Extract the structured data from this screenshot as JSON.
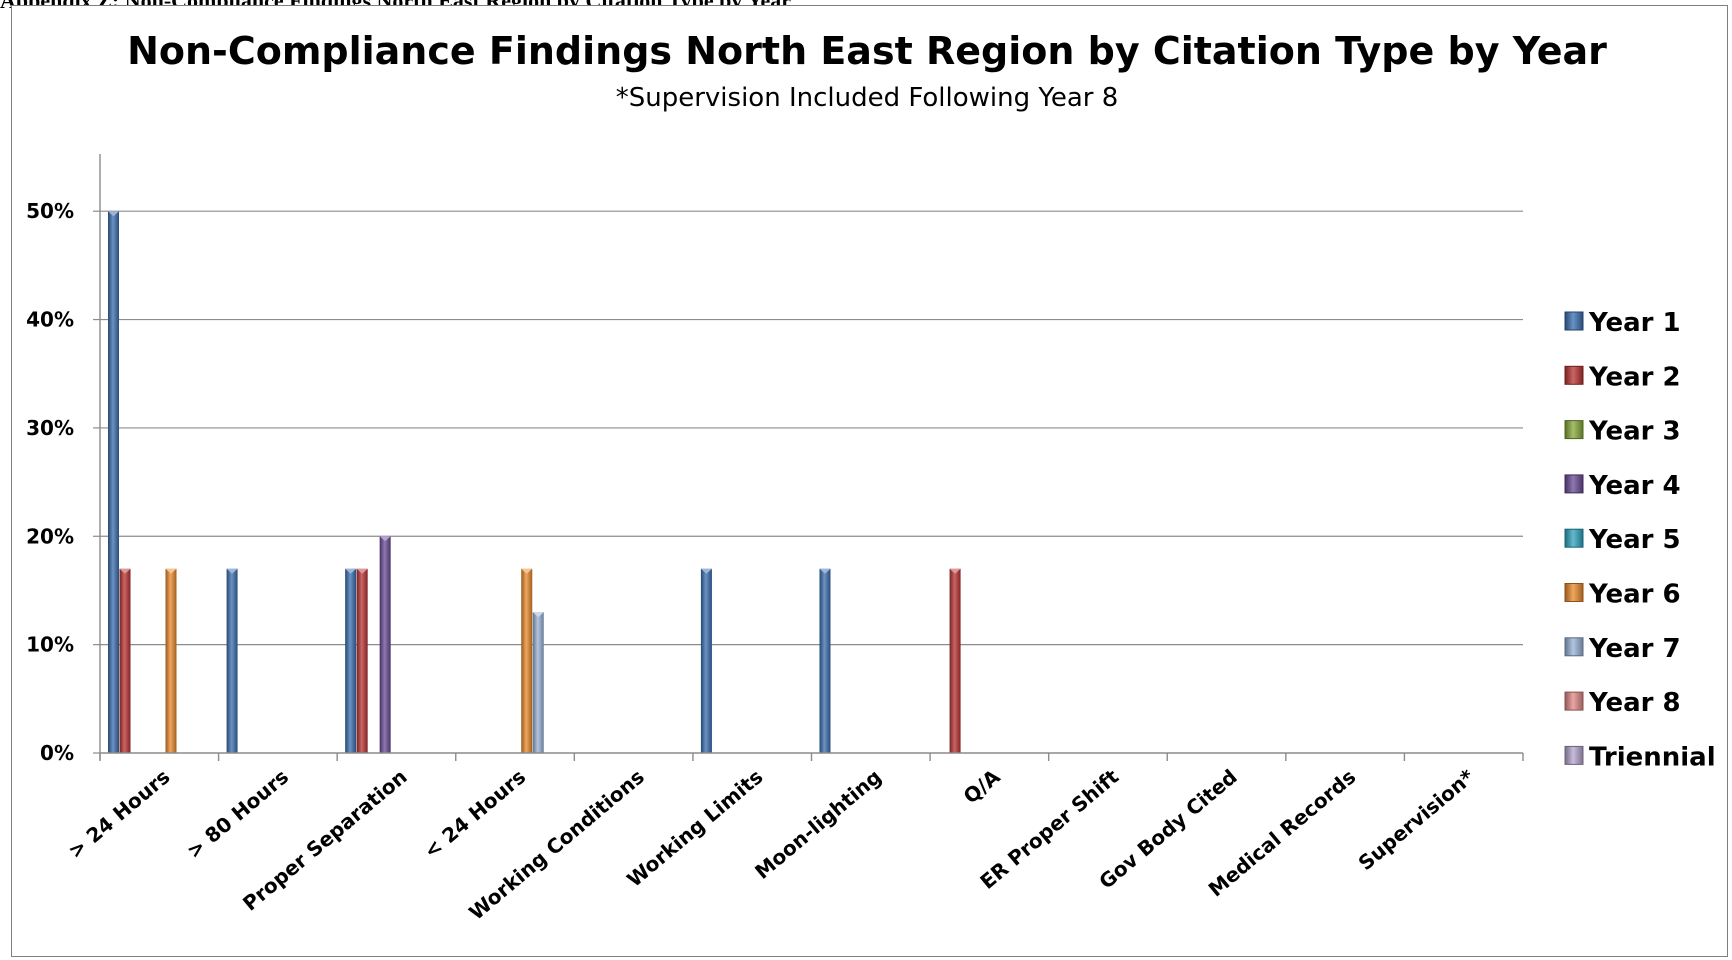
{
  "chart_data": {
    "type": "bar",
    "title": "Non-Compliance Findings North East Region by Citation Type by Year",
    "subtitle": "*Supervision Included Following Year 8",
    "xlabel": "",
    "ylabel": "",
    "ylim": [
      0,
      0.55
    ],
    "yticks": [
      0,
      0.1,
      0.2,
      0.3,
      0.4,
      0.5
    ],
    "ytick_labels": [
      "0%",
      "10%",
      "20%",
      "30%",
      "40%",
      "50%"
    ],
    "grid": true,
    "legend_position": "right",
    "categories": [
      "> 24 Hours",
      "> 80 Hours",
      "Proper Separation",
      "< 24 Hours",
      "Working Conditions",
      "Working Limits",
      "Moon-lighting",
      "Q/A",
      "ER Proper Shift",
      "Gov Body Cited",
      "Medical Records",
      "Supervision*"
    ],
    "series": [
      {
        "name": "Year 1",
        "color": "#3a6eb0",
        "values": [
          0.5,
          0.17,
          0.17,
          0,
          0,
          0.17,
          0.17,
          0,
          0,
          0,
          0,
          0
        ]
      },
      {
        "name": "Year 2",
        "color": "#b83232",
        "values": [
          0.17,
          0,
          0.17,
          0,
          0,
          0,
          0,
          0.17,
          0,
          0,
          0,
          0
        ]
      },
      {
        "name": "Year 3",
        "color": "#86a838",
        "values": [
          0,
          0,
          0,
          0,
          0,
          0,
          0,
          0,
          0,
          0,
          0,
          0
        ]
      },
      {
        "name": "Year 4",
        "color": "#6a4a96",
        "values": [
          0,
          0,
          0.2,
          0,
          0,
          0,
          0,
          0,
          0,
          0,
          0,
          0
        ]
      },
      {
        "name": "Year 5",
        "color": "#2ea3bd",
        "values": [
          0,
          0,
          0,
          0,
          0,
          0,
          0,
          0,
          0,
          0,
          0,
          0
        ]
      },
      {
        "name": "Year 6",
        "color": "#e8892a",
        "values": [
          0.17,
          0,
          0,
          0.17,
          0,
          0,
          0,
          0,
          0,
          0,
          0,
          0
        ]
      },
      {
        "name": "Year 7",
        "color": "#97b2d6",
        "values": [
          0,
          0,
          0,
          0.13,
          0,
          0,
          0,
          0,
          0,
          0,
          0,
          0
        ]
      },
      {
        "name": "Year 8",
        "color": "#e08886",
        "values": [
          0,
          0,
          0,
          0,
          0,
          0,
          0,
          0,
          0,
          0,
          0,
          0
        ]
      },
      {
        "name": "Triennial",
        "color": "#b4a5cc",
        "values": [
          0,
          0,
          0,
          0,
          0,
          0,
          0,
          0,
          0,
          0,
          0,
          0
        ]
      }
    ]
  }
}
